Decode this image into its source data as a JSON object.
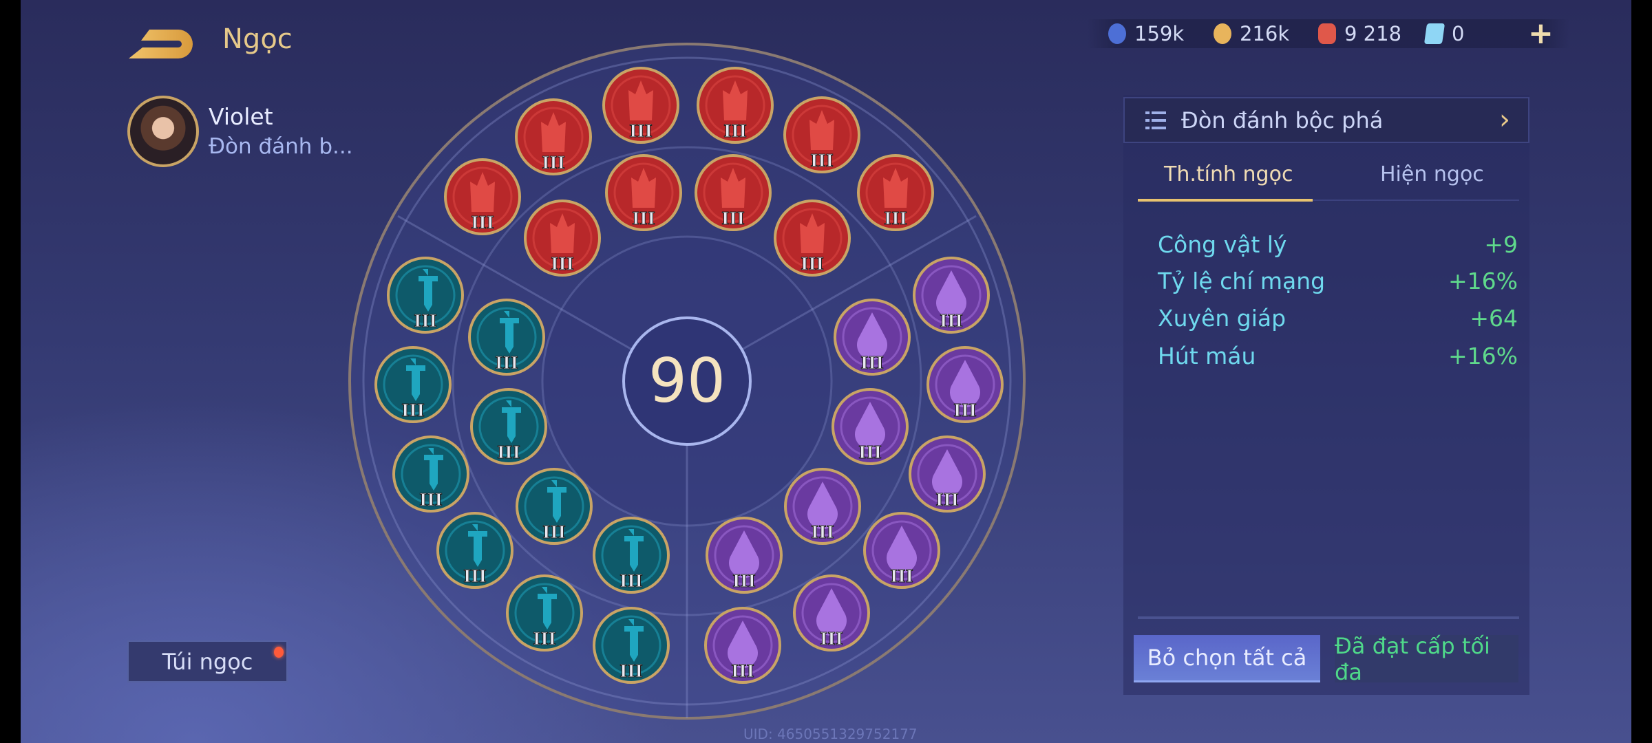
{
  "header": {
    "title": "Ngọc",
    "back_icon": "back-arrow-icon"
  },
  "hero": {
    "name": "Violet",
    "preset_short": "Đòn đánh b..."
  },
  "currency": [
    {
      "icon": "blue-coin-icon",
      "value": "159k",
      "color": "#4d6fd6"
    },
    {
      "icon": "gold-coin-icon",
      "value": "216k",
      "color": "#e8b45c"
    },
    {
      "icon": "red-gem-icon",
      "value": "9 218",
      "color": "#e0584a"
    },
    {
      "icon": "blue-card-icon",
      "value": "0",
      "color": "#8fd6f5"
    }
  ],
  "plus_label": "+",
  "board": {
    "level": "90"
  },
  "gems": {
    "red": {
      "tier": "III",
      "count": 10,
      "color": "#b8282a",
      "icon": "flame-icon"
    },
    "teal": {
      "tier": "III",
      "count": 10,
      "color": "#0e5a6a",
      "icon": "sword-icon"
    },
    "purple": {
      "tier": "III",
      "count": 10,
      "color": "#6a3aa0",
      "icon": "drop-icon"
    }
  },
  "panel": {
    "preset": "Đòn đánh bộc phá",
    "tabs": [
      {
        "label": "Th.tính ngọc",
        "active": true
      },
      {
        "label": "Hiện ngọc",
        "active": false
      }
    ],
    "stats": [
      {
        "label": "Công vật lý",
        "value": "+9"
      },
      {
        "label": "Tỷ lệ chí mạng",
        "value": "+16%"
      },
      {
        "label": "Xuyên giáp",
        "value": "+64"
      },
      {
        "label": "Hút máu",
        "value": "+16%"
      }
    ],
    "deselect_all": "Bỏ chọn tất cả",
    "max_level": "Đã đạt cấp tối đa"
  },
  "bag": {
    "label": "Túi ngọc",
    "has_notification": true
  },
  "uid": "UID: 4650551329752177"
}
